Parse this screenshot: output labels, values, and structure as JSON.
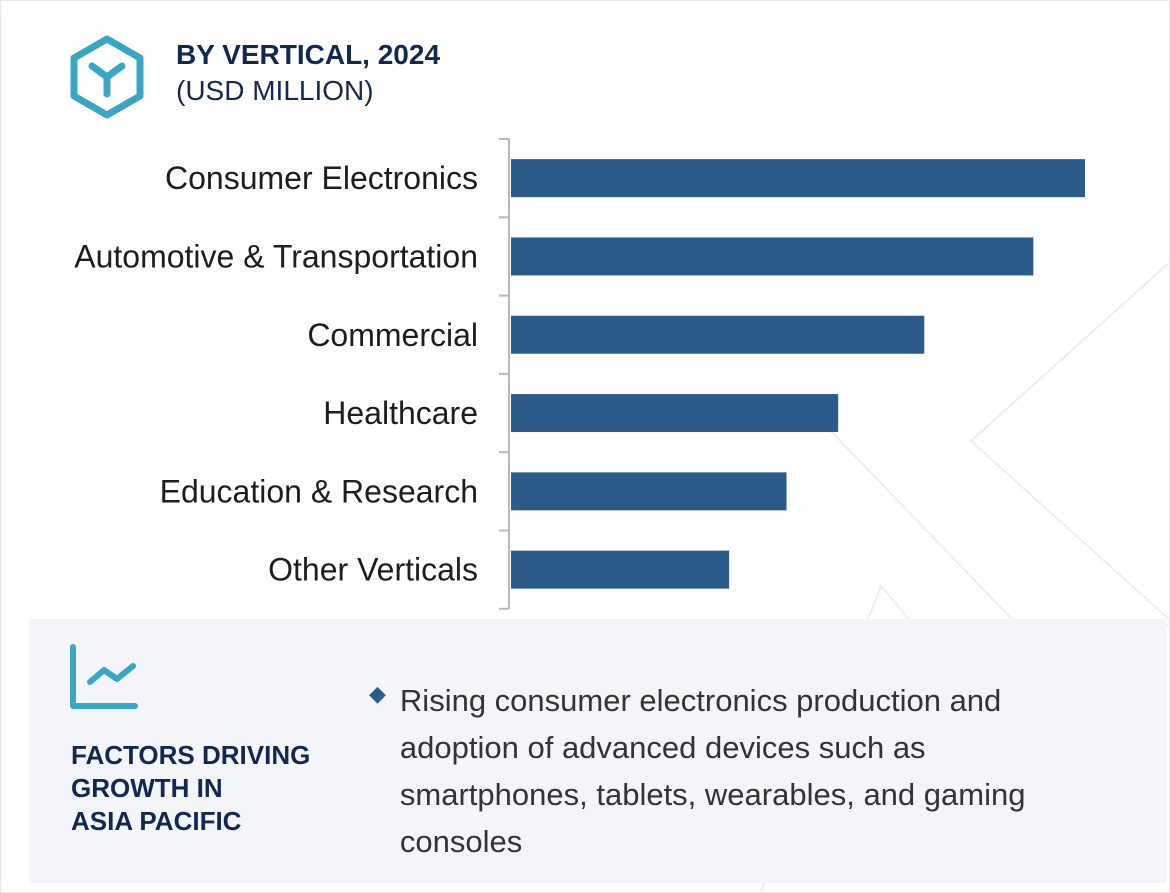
{
  "header": {
    "title": "BY VERTICAL, 2024",
    "subtitle": "(USD MILLION)",
    "icon": "hexagon-y-icon",
    "icon_color": "#3aa6c4"
  },
  "chart_data": {
    "type": "bar",
    "orientation": "horizontal",
    "title": "BY VERTICAL, 2024",
    "ylabel": "(USD MILLION)",
    "categories": [
      "Consumer Electronics",
      "Automotive & Transportation",
      "Commercial",
      "Healthcare",
      "Education & Research",
      "Other Verticals"
    ],
    "values": [
      100,
      91,
      72,
      57,
      48,
      38
    ],
    "value_note_unit": "relative (no value axis printed)",
    "bar_color": "#2c5b8a",
    "grid": false
  },
  "panel": {
    "icon": "trend-chart-icon",
    "title": "FACTORS DRIVING GROWTH IN ASIA PACIFIC",
    "title_lines": [
      "FACTORS DRIVING",
      "GROWTH IN",
      "ASIA PACIFIC"
    ],
    "bullets": [
      "Rising consumer electronics production and adoption of advanced devices such as smartphones, tablets, wearables, and gaming consoles"
    ]
  }
}
